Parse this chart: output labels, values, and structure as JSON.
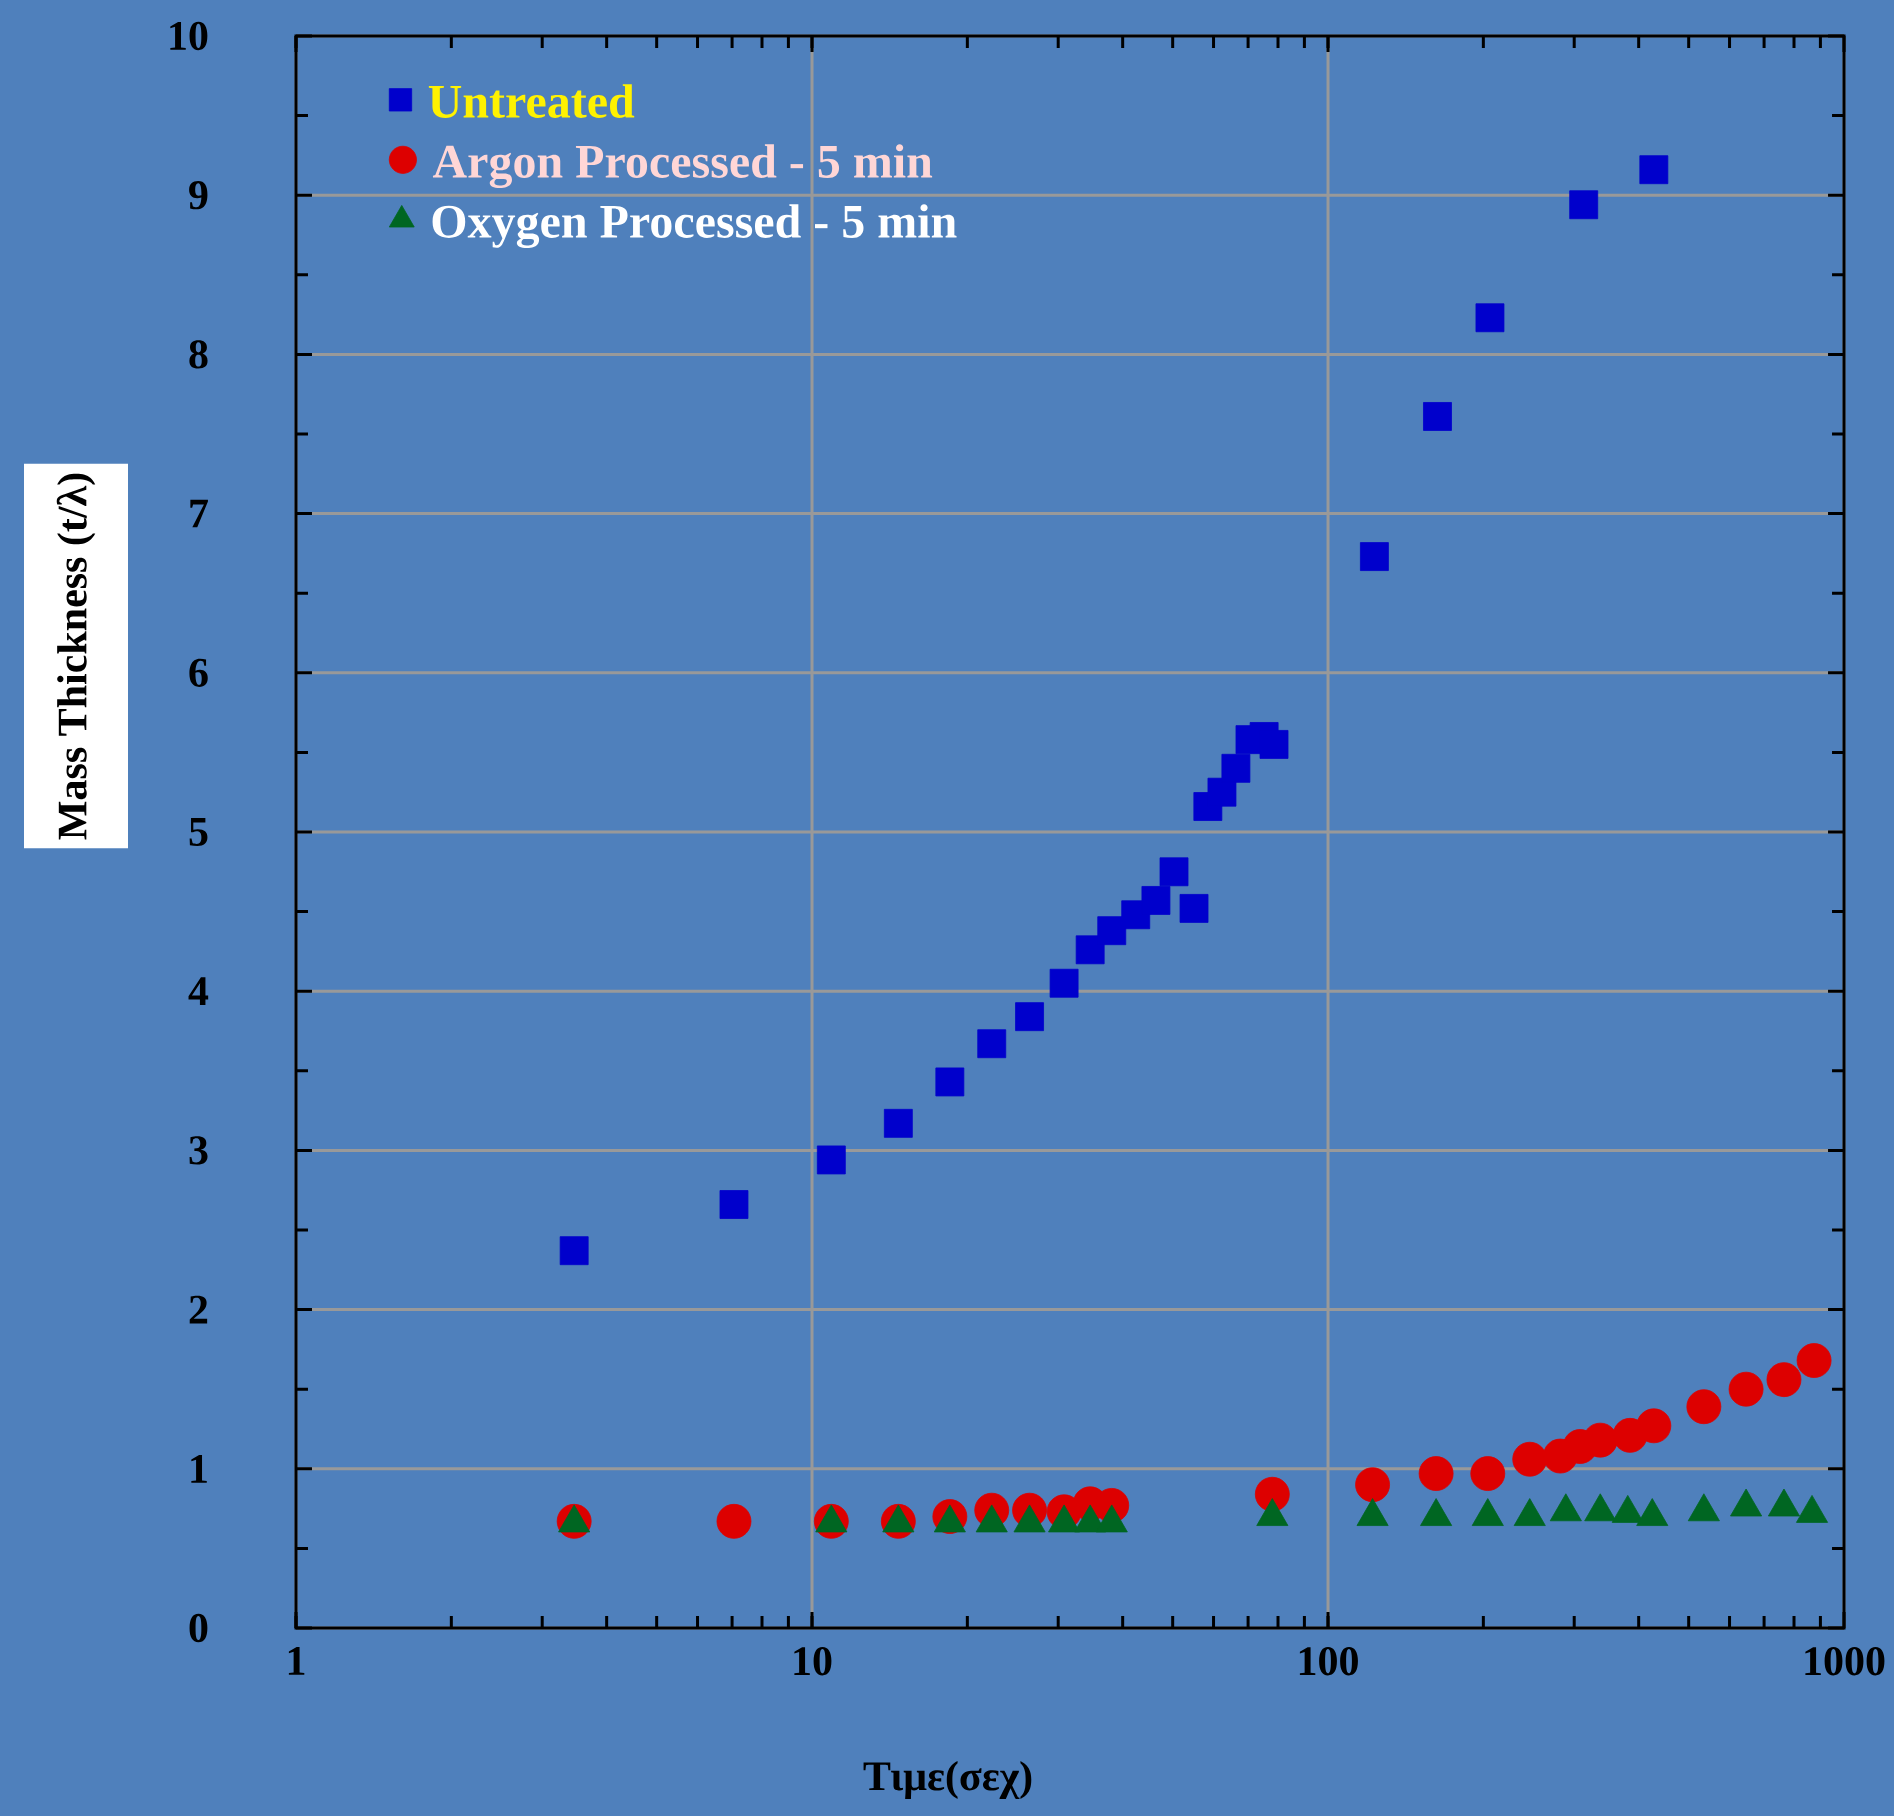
{
  "chart_data": {
    "type": "scatter",
    "xlabel": "Τιμε(σεχ)",
    "ylabel": "Mass Thickness (t/λ)",
    "log": "x",
    "grid": true,
    "legend": "top left",
    "xlim": [
      1,
      1000
    ],
    "ylim": [
      0,
      10
    ],
    "xticks": [
      1,
      10,
      100,
      1000
    ],
    "yticks": [
      0,
      1,
      2,
      3,
      4,
      5,
      6,
      7,
      8,
      9,
      10
    ],
    "series": [
      {
        "name": "Untreated",
        "color": "#0000cc",
        "marker": "square",
        "x": [
          3.46,
          7.06,
          10.9,
          14.7,
          18.5,
          22.3,
          26.4,
          30.8,
          34.6,
          38.1,
          42.4,
          46.4,
          50.3,
          55.0,
          58.5,
          62.3,
          66.3,
          70.6,
          75.2,
          78.6,
          123,
          163,
          206,
          313,
          428
        ],
        "values": [
          2.37,
          2.66,
          2.94,
          3.17,
          3.43,
          3.67,
          3.84,
          4.05,
          4.26,
          4.38,
          4.48,
          4.57,
          4.75,
          4.52,
          5.16,
          5.25,
          5.4,
          5.58,
          5.6,
          5.55,
          6.73,
          7.61,
          8.23,
          8.94,
          9.16
        ]
      },
      {
        "name": "Argon Processed - 5 min",
        "color": "#dd0000",
        "marker": "circle",
        "x": [
          3.46,
          7.06,
          10.9,
          14.7,
          18.5,
          22.3,
          26.4,
          30.8,
          34.6,
          38.1,
          78,
          122,
          162,
          204,
          246,
          282,
          308,
          337,
          385,
          428,
          535,
          646,
          765,
          875
        ],
        "values": [
          0.67,
          0.67,
          0.67,
          0.67,
          0.7,
          0.74,
          0.74,
          0.73,
          0.78,
          0.77,
          0.84,
          0.9,
          0.97,
          0.97,
          1.06,
          1.08,
          1.14,
          1.18,
          1.21,
          1.27,
          1.39,
          1.5,
          1.56,
          1.68
        ]
      },
      {
        "name": "Oxygen Processed - 5 min",
        "color": "#006622",
        "marker": "triangle",
        "x": [
          3.46,
          10.9,
          14.7,
          18.5,
          22.3,
          26.4,
          30.8,
          34.6,
          38.1,
          78,
          122,
          162,
          204,
          246,
          289,
          337,
          381,
          425,
          535,
          646,
          765,
          867
        ],
        "values": [
          0.66,
          0.66,
          0.66,
          0.66,
          0.66,
          0.66,
          0.66,
          0.66,
          0.66,
          0.7,
          0.7,
          0.7,
          0.7,
          0.7,
          0.73,
          0.73,
          0.72,
          0.7,
          0.73,
          0.76,
          0.76,
          0.72
        ]
      }
    ]
  }
}
